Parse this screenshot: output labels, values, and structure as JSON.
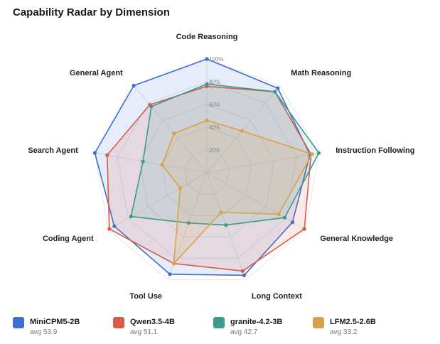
{
  "chart_data": {
    "type": "radar",
    "title": "Capability Radar by Dimension",
    "axes": [
      "Code Reasoning",
      "Math Reasoning",
      "Instruction Following",
      "General Knowledge",
      "Long Context",
      "Tool Use",
      "Coding Agent",
      "Search Agent",
      "General Agent"
    ],
    "range": [
      0,
      100
    ],
    "ticks": [
      "20%",
      "40%",
      "60%",
      "80%",
      "100%"
    ],
    "tick_values": [
      20,
      40,
      60,
      80,
      100
    ],
    "grid": true,
    "legend_position": "bottom",
    "series": [
      {
        "name": "MiniCPM5-2B",
        "sub": "avg 53.9",
        "color": "#3b6fd4",
        "values": [
          100,
          97,
          92,
          87,
          96,
          95,
          94,
          100,
          100
        ]
      },
      {
        "name": "Qwen3.5-4B",
        "sub": "avg 51.1",
        "color": "#d85a48",
        "values": [
          76,
          93,
          93,
          99,
          92,
          85,
          99,
          89,
          78
        ]
      },
      {
        "name": "granite-4.2-3B",
        "sub": "avg 42.7",
        "color": "#3e9a8a",
        "values": [
          78,
          93,
          100,
          79,
          49,
          47,
          77,
          57,
          76
        ]
      },
      {
        "name": "LFM2.5-2.6B",
        "sub": "avg 33.2",
        "color": "#d8a24a",
        "values": [
          46,
          48,
          94,
          73,
          37,
          85,
          27,
          40,
          45
        ]
      }
    ]
  }
}
